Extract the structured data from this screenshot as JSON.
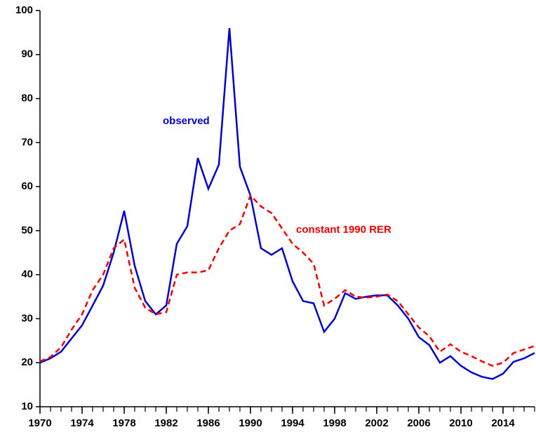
{
  "chart_data": {
    "type": "line",
    "x": [
      1970,
      1971,
      1972,
      1973,
      1974,
      1975,
      1976,
      1977,
      1978,
      1979,
      1980,
      1981,
      1982,
      1983,
      1984,
      1985,
      1986,
      1987,
      1988,
      1989,
      1990,
      1991,
      1992,
      1993,
      1994,
      1995,
      1996,
      1997,
      1998,
      1999,
      2000,
      2001,
      2002,
      2003,
      2004,
      2005,
      2006,
      2007,
      2008,
      2009,
      2010,
      2011,
      2012,
      2013,
      2014,
      2015,
      2016,
      2017
    ],
    "series": [
      {
        "name": "observed",
        "color": "#0000cc",
        "dash": false,
        "values": [
          20,
          21,
          22.5,
          25.5,
          28.5,
          33,
          37.5,
          45,
          54.5,
          42,
          34,
          31,
          33,
          47,
          51,
          66.5,
          59.5,
          65,
          96,
          64.5,
          58,
          46,
          44.5,
          46,
          38.5,
          34,
          33.5,
          27,
          30,
          35.8,
          34.5,
          35,
          35.3,
          35.3,
          33,
          30,
          25.8,
          24,
          20,
          21.5,
          19.3,
          17.8,
          16.8,
          16.3,
          17.5,
          20.2,
          21,
          22.2
        ]
      },
      {
        "name": "constant 1990 RER",
        "color": "#ee0000",
        "dash": true,
        "values": [
          20.3,
          21.3,
          23.5,
          27.5,
          31,
          36.5,
          40,
          46,
          48,
          37,
          32.5,
          31,
          31.5,
          40,
          40.5,
          40.5,
          41,
          46,
          50,
          51.5,
          58,
          55.5,
          54,
          50.5,
          47,
          45,
          42.5,
          33,
          34.5,
          36.5,
          35,
          34.8,
          35,
          35.5,
          34,
          31,
          28,
          26,
          22.5,
          24.2,
          22.5,
          21.5,
          20.3,
          19.3,
          20,
          22.2,
          23,
          23.8
        ]
      }
    ],
    "xlim": [
      1970,
      2017
    ],
    "xticks": [
      1970,
      1974,
      1978,
      1982,
      1986,
      1990,
      1994,
      1998,
      2002,
      2006,
      2010,
      2014
    ],
    "ylim": [
      10,
      100
    ],
    "yticks": [
      10,
      20,
      30,
      40,
      50,
      60,
      70,
      80,
      90,
      100
    ],
    "grid": false
  }
}
